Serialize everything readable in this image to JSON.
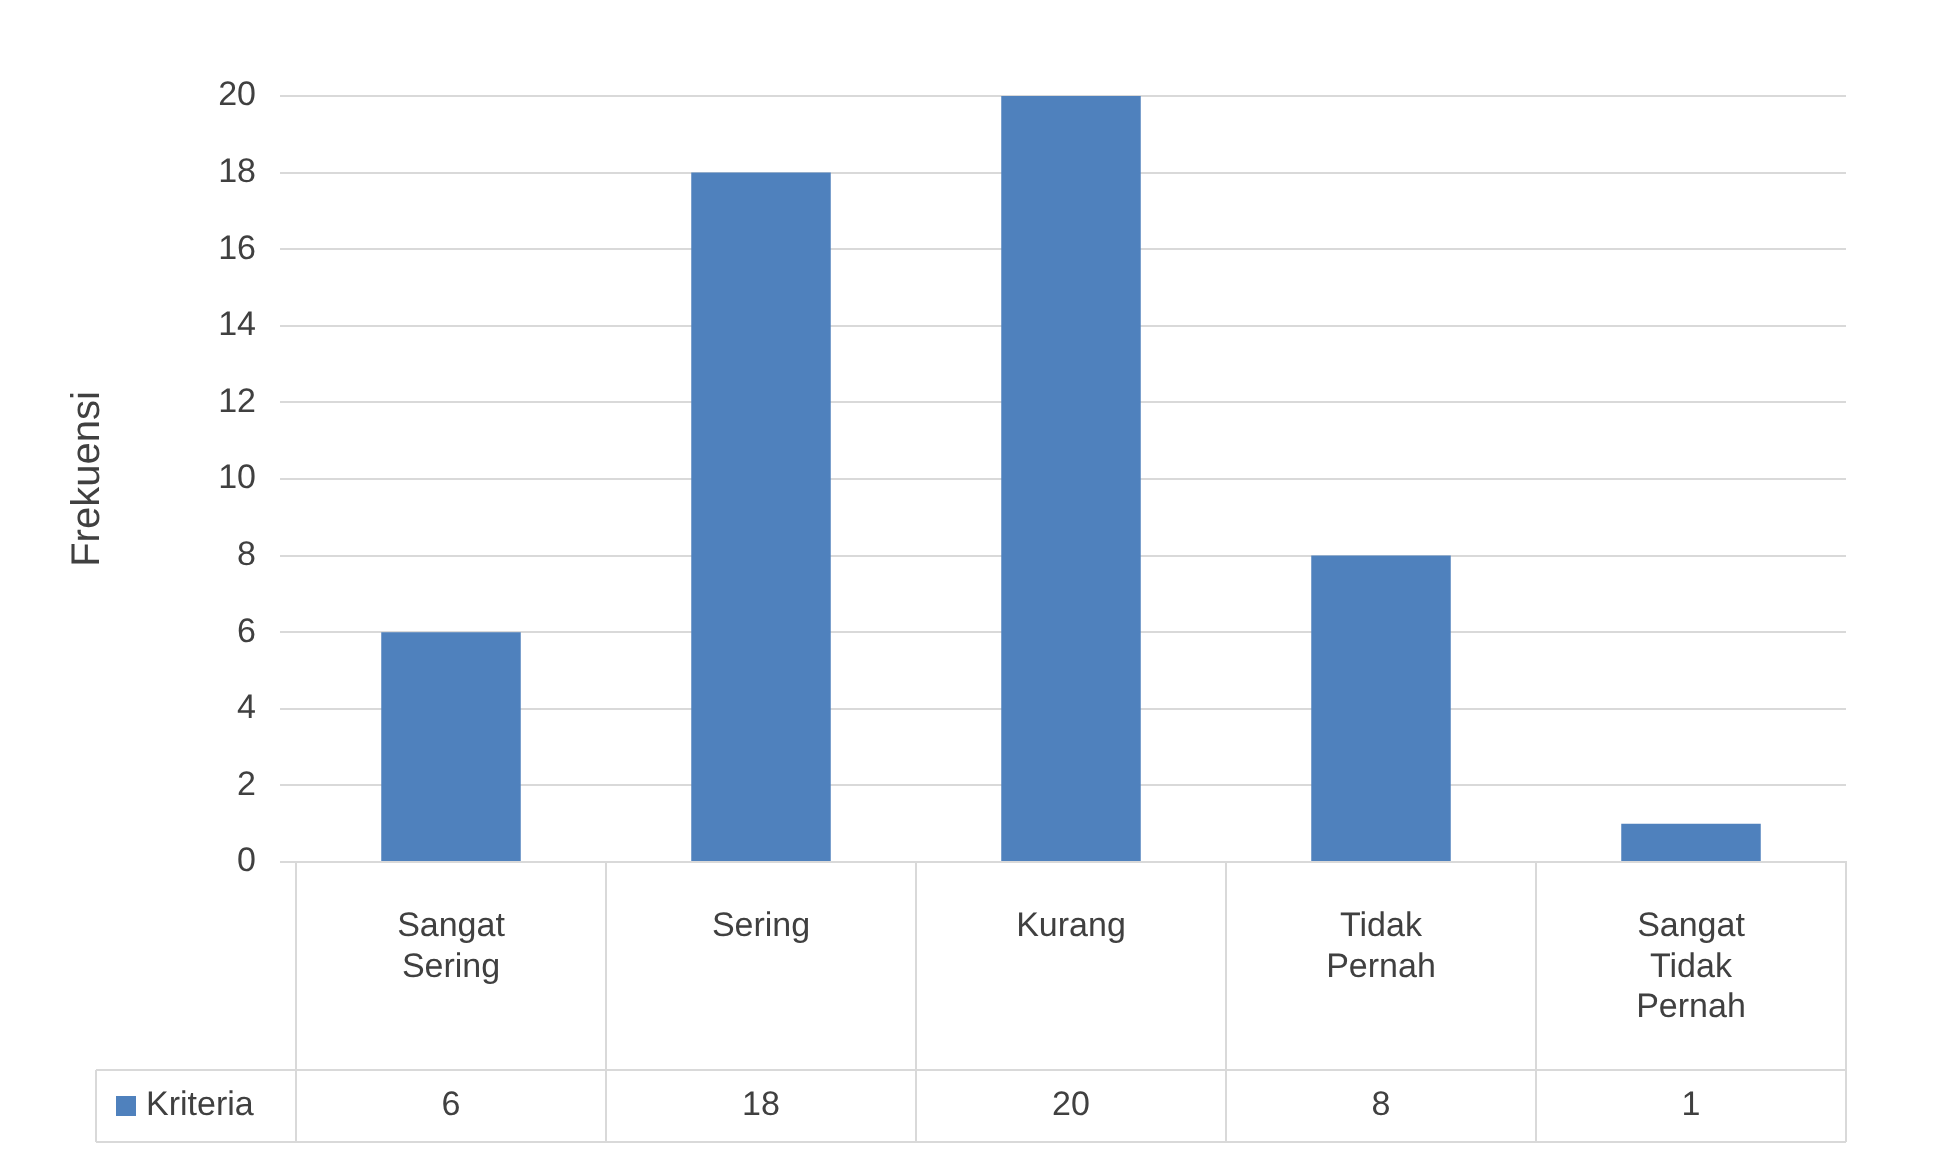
{
  "chart_data": {
    "type": "bar",
    "ylabel": "Frekuensi",
    "categories": [
      "Sangat Sering",
      "Sering",
      "Kurang",
      "Tidak Pernah",
      "Sangat Tidak Pernah"
    ],
    "series": [
      {
        "name": "Kriteria",
        "color": "#4f81bd",
        "values": [
          6,
          18,
          20,
          8,
          1
        ]
      }
    ],
    "ylim": [
      0,
      20
    ],
    "yticks": [
      0,
      2,
      4,
      6,
      8,
      10,
      12,
      14,
      16,
      18,
      20
    ],
    "grid": "y",
    "legend": "bottom",
    "data_labels": true
  }
}
